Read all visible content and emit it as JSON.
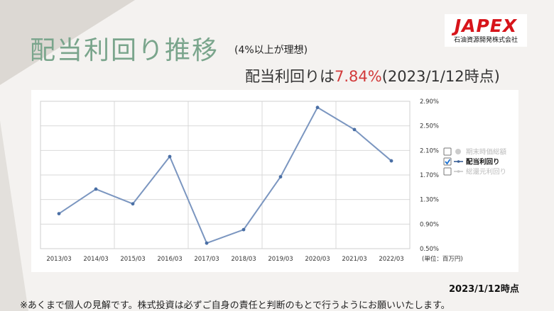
{
  "header": {
    "title": "配当利回り推移",
    "subtitle": "(4%以上が理想)",
    "headline_prefix": "配当利回りは",
    "headline_value": "7.84%",
    "headline_suffix": "(2023/1/12時点)"
  },
  "logo": {
    "word": "JAPEX",
    "sub": "石油資源開発株式会社"
  },
  "colors": {
    "title": "#7aa58c",
    "accent": "#d23a3a",
    "series": "#7b96c0",
    "logo_red": "#d7141a"
  },
  "chart_data": {
    "type": "line",
    "categories": [
      "2013/03",
      "2014/03",
      "2015/03",
      "2016/03",
      "2017/03",
      "2018/03",
      "2019/03",
      "2020/03",
      "2021/03",
      "2022/03"
    ],
    "series": [
      {
        "name": "配当利回り",
        "values": [
          1.07,
          1.47,
          1.23,
          2.0,
          0.59,
          0.81,
          1.67,
          2.8,
          2.44,
          1.93
        ]
      }
    ],
    "yticks": [
      "2.90%",
      "2.50%",
      "2.10%",
      "1.70%",
      "1.30%",
      "0.90%",
      "0.50%"
    ],
    "ylim": [
      0.5,
      2.9
    ],
    "unit_label": "(単位：百万円)",
    "legend": [
      {
        "label": "期末時価総額",
        "checked": false,
        "active": false
      },
      {
        "label": "配当利回り",
        "checked": true,
        "active": true
      },
      {
        "label": "総還元利回り",
        "checked": false,
        "active": false
      }
    ],
    "legend_position": "right",
    "grid": true
  },
  "date_note": "2023/1/12時点",
  "footnote": "※あくまで個人の見解です。株式投資は必ずご自身の責任と判断のもとで行うようにお願いいたします。"
}
